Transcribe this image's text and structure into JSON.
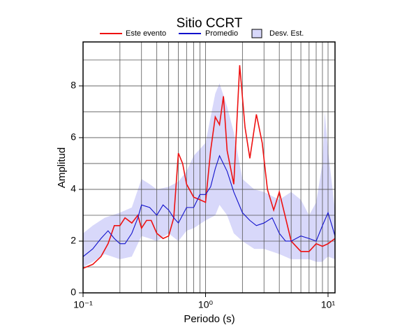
{
  "chart_data": {
    "type": "line",
    "title": "Sitio CCRT",
    "x_label": "Periodo (s)",
    "y_label": "Amplitud",
    "x_scale": "log",
    "grid": true,
    "legend": "top",
    "xlim": [
      0.1,
      11.4
    ],
    "ylim": [
      0,
      9.7
    ],
    "xticks": [
      {
        "value": 0.1,
        "label": "10⁻¹"
      },
      {
        "value": 1,
        "label": "10⁰"
      },
      {
        "value": 10,
        "label": "10¹"
      }
    ],
    "minor_xticks": [
      0.2,
      0.3,
      0.4,
      0.5,
      0.6,
      0.7,
      0.8,
      0.9,
      2,
      3,
      4,
      5,
      6,
      7,
      8,
      9
    ],
    "yticks": [
      0,
      2,
      4,
      6,
      8
    ],
    "minor_yticks": [
      1,
      3,
      5,
      7,
      9
    ],
    "band": {
      "name": "Desv. Est.",
      "color": "#d8d8fa",
      "x": [
        0.1,
        0.12,
        0.15,
        0.2,
        0.25,
        0.3,
        0.35,
        0.4,
        0.5,
        0.6,
        0.7,
        0.8,
        1.0,
        1.2,
        1.3,
        1.5,
        1.7,
        2.0,
        2.5,
        3,
        4,
        5,
        6,
        7,
        8,
        9,
        9.4,
        10,
        11.4
      ],
      "upper": [
        2.3,
        2.6,
        2.9,
        3.1,
        3.3,
        4.4,
        4.2,
        4.0,
        4.1,
        4.3,
        4.7,
        5.3,
        5.8,
        7.7,
        8.1,
        7.2,
        6.2,
        4.4,
        4.0,
        3.9,
        3.6,
        3.9,
        3.6,
        3.0,
        3.5,
        5.0,
        7.0,
        5.5,
        3.2
      ],
      "lower": [
        1.0,
        1.2,
        1.5,
        1.3,
        1.4,
        2.2,
        2.1,
        2.0,
        2.3,
        2.0,
        2.4,
        2.5,
        2.8,
        3.0,
        3.4,
        3.0,
        2.3,
        2.0,
        1.7,
        1.7,
        1.5,
        1.3,
        1.3,
        1.3,
        1.2,
        1.2,
        1.3,
        1.4,
        1.3
      ]
    },
    "series": [
      {
        "name": "Este evento",
        "color": "#ee1111",
        "x": [
          0.1,
          0.12,
          0.14,
          0.16,
          0.18,
          0.2,
          0.22,
          0.25,
          0.28,
          0.3,
          0.33,
          0.36,
          0.4,
          0.45,
          0.5,
          0.55,
          0.6,
          0.65,
          0.7,
          0.8,
          0.9,
          1.0,
          1.1,
          1.2,
          1.3,
          1.4,
          1.5,
          1.7,
          1.9,
          2.1,
          2.3,
          2.6,
          2.9,
          3.2,
          3.6,
          4.0,
          4.5,
          5,
          6,
          7,
          8,
          9,
          10,
          11.4
        ],
        "values": [
          0.95,
          1.1,
          1.4,
          1.9,
          2.6,
          2.6,
          2.9,
          2.7,
          3.0,
          2.5,
          2.8,
          2.8,
          2.3,
          2.1,
          2.2,
          2.9,
          5.4,
          5.0,
          4.2,
          3.7,
          3.6,
          3.5,
          5.5,
          6.8,
          6.5,
          7.6,
          5.5,
          4.2,
          8.8,
          6.4,
          5.2,
          6.9,
          5.8,
          4.0,
          3.2,
          3.9,
          2.9,
          2.0,
          1.6,
          1.6,
          1.9,
          1.8,
          1.9,
          2.1
        ]
      },
      {
        "name": "Promedio",
        "color": "#1111cc",
        "x": [
          0.1,
          0.12,
          0.14,
          0.16,
          0.18,
          0.2,
          0.22,
          0.25,
          0.28,
          0.3,
          0.35,
          0.4,
          0.45,
          0.5,
          0.55,
          0.6,
          0.7,
          0.8,
          0.9,
          1.0,
          1.1,
          1.2,
          1.3,
          1.5,
          1.7,
          2.0,
          2.3,
          2.6,
          3,
          3.5,
          4,
          4.5,
          5,
          6,
          7,
          8,
          9,
          10,
          11.4
        ],
        "values": [
          1.4,
          1.7,
          2.1,
          2.4,
          2.1,
          1.9,
          1.9,
          2.3,
          2.9,
          3.4,
          3.3,
          3.0,
          3.4,
          3.2,
          2.9,
          2.7,
          3.3,
          3.3,
          3.8,
          3.8,
          4.1,
          4.8,
          5.3,
          4.7,
          3.9,
          3.1,
          2.8,
          2.6,
          2.7,
          2.9,
          2.3,
          2.0,
          2.0,
          2.2,
          2.1,
          2.0,
          2.6,
          3.1,
          2.2
        ]
      }
    ]
  }
}
